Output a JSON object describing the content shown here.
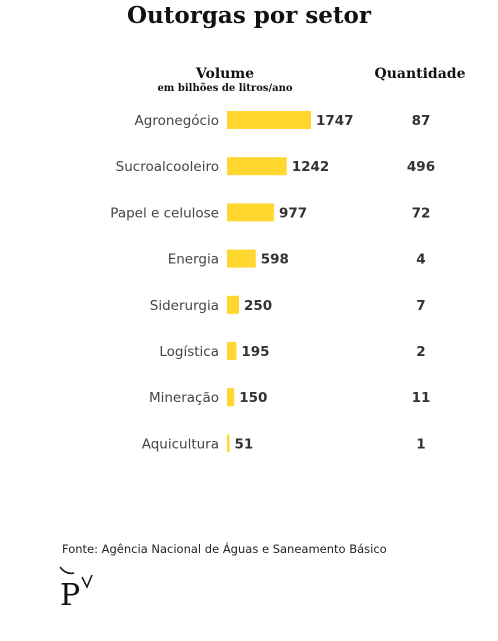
{
  "title": "Outorgas por setor",
  "headers": {
    "volume": "Volume",
    "volume_sub": "em bilhões de litros/ano",
    "quantity": "Quantidade"
  },
  "chart_data": {
    "type": "bar",
    "orientation": "horizontal",
    "categories": [
      "Agronegócio",
      "Sucroalcooleiro",
      "Papel e celulose",
      "Energia",
      "Siderurgia",
      "Logística",
      "Mineração",
      "Aquicultura"
    ],
    "values": [
      1747,
      1242,
      977,
      598,
      250,
      195,
      150,
      51
    ],
    "quantities": [
      87,
      496,
      72,
      4,
      7,
      2,
      11,
      1
    ],
    "xlim": [
      0,
      1747
    ],
    "grid": false,
    "bar_color": "#FFD72E"
  },
  "source": "Fonte: Agência Nacional de Águas e Saneamento Básico"
}
